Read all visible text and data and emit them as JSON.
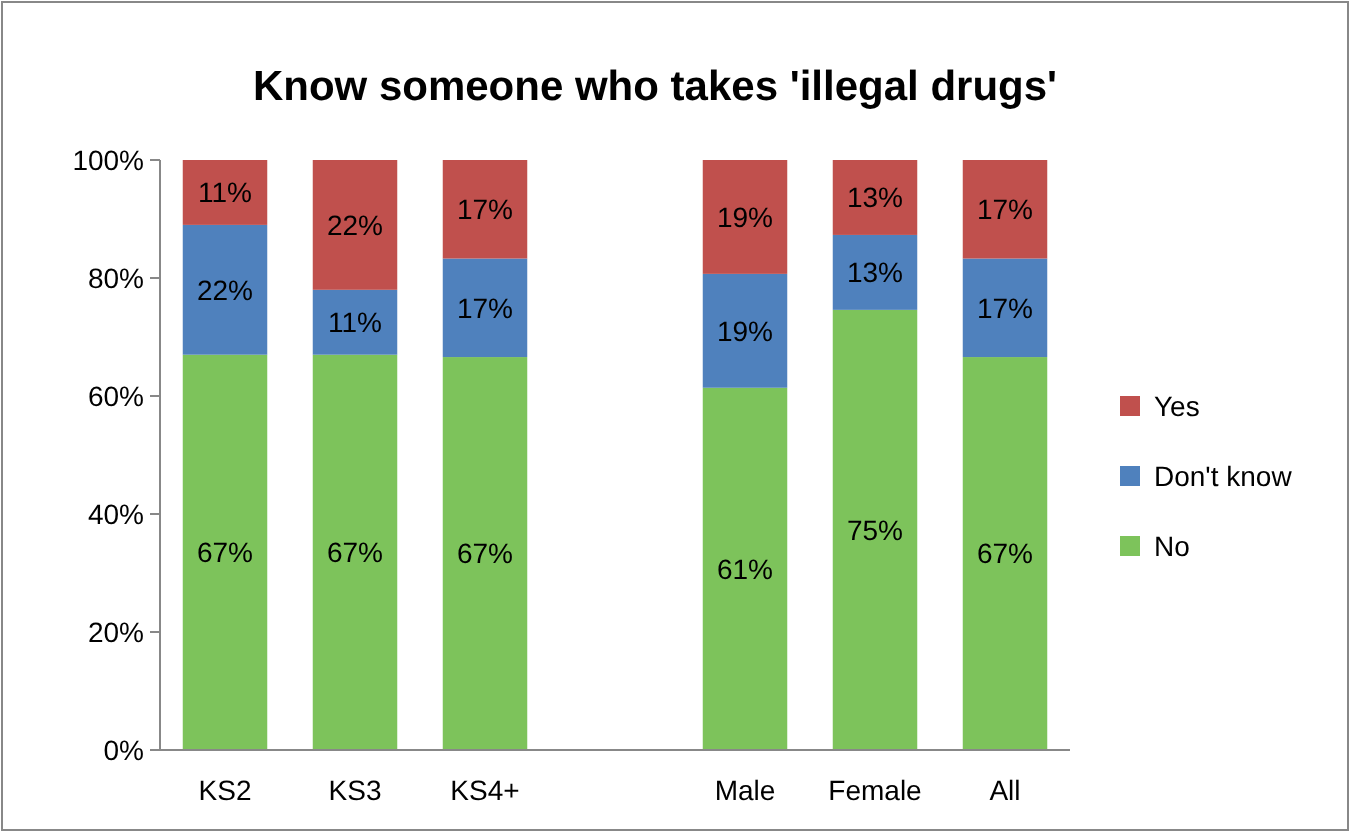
{
  "chart_data": {
    "type": "bar",
    "title": "Know someone who takes 'illegal drugs'",
    "stacked": true,
    "categories": [
      "KS2",
      "KS3",
      "KS4+",
      null,
      "Male",
      "Female",
      "All"
    ],
    "series": [
      {
        "name": "No",
        "color": "#7dc35b",
        "values": [
          67,
          67,
          66.6,
          null,
          61.4,
          74.6,
          66.6
        ],
        "value_labels": [
          "67%",
          "67%",
          "67%",
          null,
          "61%",
          "75%",
          "67%"
        ]
      },
      {
        "name": "Don't know",
        "color": "#4f81bd",
        "values": [
          22,
          11,
          16.7,
          null,
          19.3,
          12.7,
          16.7
        ],
        "value_labels": [
          "22%",
          "11%",
          "17%",
          null,
          "19%",
          "13%",
          "17%"
        ]
      },
      {
        "name": "Yes",
        "color": "#c0504d",
        "values": [
          11,
          22,
          16.7,
          null,
          19.3,
          12.7,
          16.7
        ],
        "value_labels": [
          "11%",
          "22%",
          "17%",
          null,
          "19%",
          "13%",
          "17%"
        ]
      }
    ],
    "ylim": [
      0,
      100
    ],
    "yticks": [
      {
        "value": 0,
        "label": "0%"
      },
      {
        "value": 20,
        "label": "20%"
      },
      {
        "value": 40,
        "label": "40%"
      },
      {
        "value": 60,
        "label": "60%"
      },
      {
        "value": 80,
        "label": "80%"
      },
      {
        "value": 100,
        "label": "100%"
      }
    ],
    "grid": false,
    "legend": "right"
  }
}
